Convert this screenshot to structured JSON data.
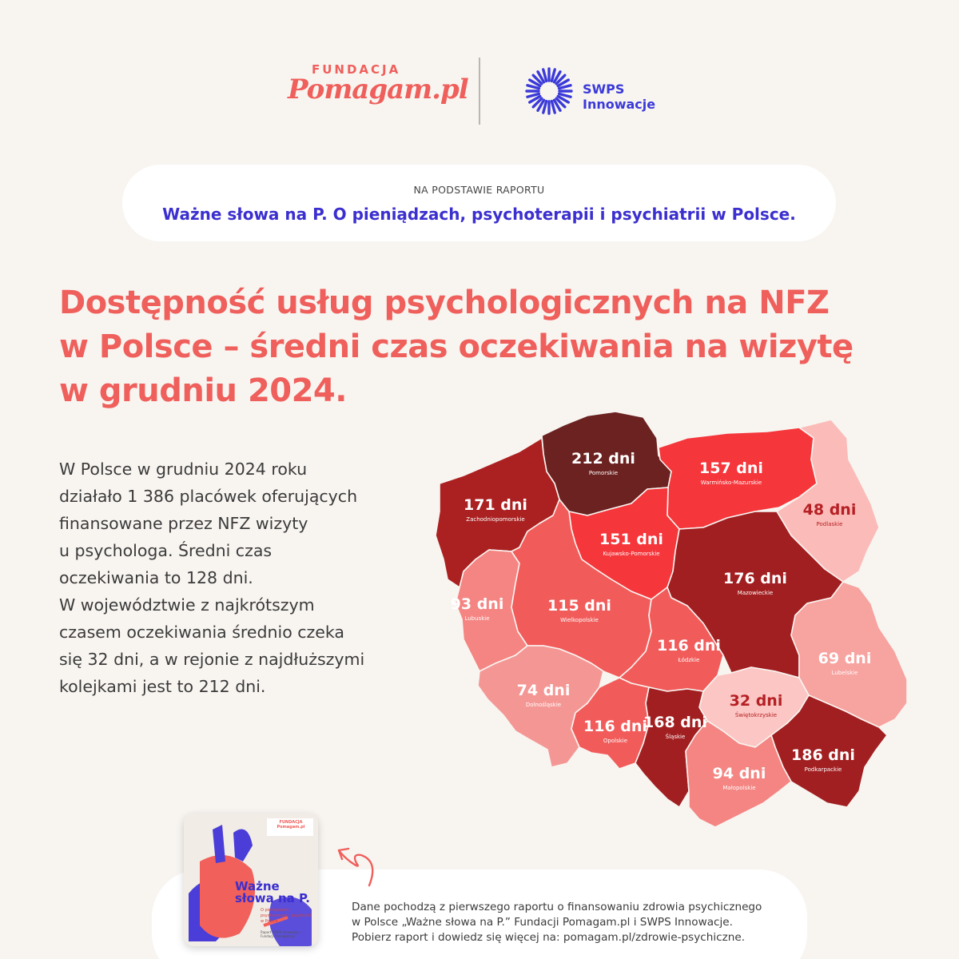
{
  "header": {
    "fundacja_small": "FUNDACJA",
    "fundacja_big": "Pomagam.pl",
    "swps_name": "SWPS Innowacje"
  },
  "report": {
    "kicker": "NA PODSTAWIE RAPORTU",
    "title": "Ważne słowa na P. O pieniądzach, psychoterapii i psychiatrii w Polsce."
  },
  "title_lines": [
    "Dostępność usług psychologicznych na NFZ",
    "w Polsce – średni czas oczekiwania na wizytę",
    "w grudniu 2024."
  ],
  "body_lines": [
    "W Polsce w grudniu 2024 roku",
    "działało 1 386 placówek oferujących",
    "finansowane przez NFZ wizyty",
    "u psychologa. Średni czas",
    "oczekiwania to 128 dni.",
    "W województwie z najkrótszym",
    "czasem oczekiwania średnio czeka",
    "się 32 dni, a w rejonie z najdłuższymi",
    "kolejkami jest to 212 dni."
  ],
  "regions": [
    {
      "name": "Pomorskie",
      "value": "212 dni",
      "days": 212,
      "color": "#6b2220",
      "text": "#ffffff"
    },
    {
      "name": "Warmińsko-Mazurskie",
      "value": "157 dni",
      "days": 157,
      "color": "#f5363b",
      "text": "#ffffff"
    },
    {
      "name": "Podlaskie",
      "value": "48 dni",
      "days": 48,
      "color": "#fbbcb9",
      "text": "#b52024"
    },
    {
      "name": "Zachodniopomorskie",
      "value": "171 dni",
      "days": 171,
      "color": "#ab2121",
      "text": "#ffffff"
    },
    {
      "name": "Kujawsko-Pomorskie",
      "value": "151 dni",
      "days": 151,
      "color": "#f5363b",
      "text": "#ffffff"
    },
    {
      "name": "Mazowieckie",
      "value": "176 dni",
      "days": 176,
      "color": "#a21f21",
      "text": "#ffffff"
    },
    {
      "name": "Lubuskie",
      "value": "93 dni",
      "days": 93,
      "color": "#f48582",
      "text": "#ffffff"
    },
    {
      "name": "Wielkopolskie",
      "value": "115 dni",
      "days": 115,
      "color": "#f15c5b",
      "text": "#ffffff"
    },
    {
      "name": "Łódzkie",
      "value": "116 dni",
      "days": 116,
      "color": "#f15c5b",
      "text": "#ffffff"
    },
    {
      "name": "Lubelskie",
      "value": "69 dni",
      "days": 69,
      "color": "#f7a3a0",
      "text": "#ffffff"
    },
    {
      "name": "Dolnośląskie",
      "value": "74 dni",
      "days": 74,
      "color": "#f49794",
      "text": "#ffffff"
    },
    {
      "name": "Świętokrzyskie",
      "value": "32 dni",
      "days": 32,
      "color": "#fbc6c3",
      "text": "#b52024"
    },
    {
      "name": "Opolskie",
      "value": "116 dni",
      "days": 116,
      "color": "#f15c5b",
      "text": "#ffffff"
    },
    {
      "name": "Śląskie",
      "value": "168 dni",
      "days": 168,
      "color": "#a21f21",
      "text": "#ffffff"
    },
    {
      "name": "Podkarpackie",
      "value": "186 dni",
      "days": 186,
      "color": "#a21f21",
      "text": "#ffffff"
    },
    {
      "name": "Małopolskie",
      "value": "94 dni",
      "days": 94,
      "color": "#f48582",
      "text": "#ffffff"
    }
  ],
  "cover": {
    "title": "Ważne słowa na P.",
    "subtitle": "O pieniądzach, psychoterapii i psychiatrii w Polsce.",
    "brand": "FUNDACJA Pomagam.pl",
    "footer": "Raport SWPS Innowacje i Fundacji Pomagam.pl"
  },
  "source_lines": [
    "Dane pochodzą z pierwszego raportu o finansowaniu zdrowia psychicznego",
    "w Polsce „Ważne słowa na P.” Fundacji Pomagam.pl i SWPS Innowacje.",
    "Pobierz raport i dowiedz się więcej na: pomagam.pl/zdrowie-psychiczne."
  ],
  "colors": {
    "accent": "#ef5f5b",
    "report_blue": "#3b2fcf",
    "swps_blue": "#3b3ad8"
  }
}
